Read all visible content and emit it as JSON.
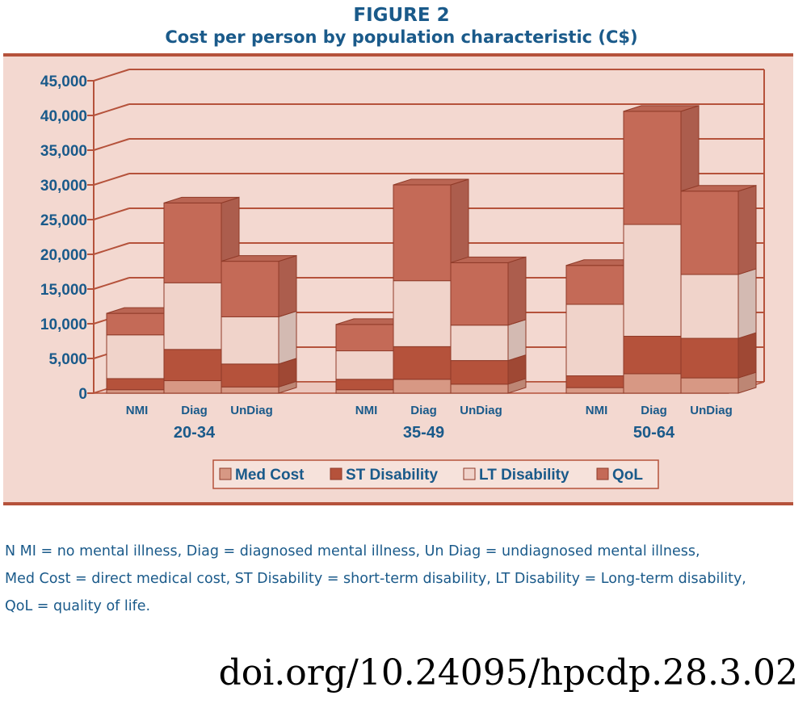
{
  "title": "FIGURE 2",
  "subtitle": "Cost per person by population characteristic (C$)",
  "chart_data": {
    "type": "bar",
    "stacked": true,
    "grid": true,
    "ylim": [
      0,
      45000
    ],
    "ytick_labels": [
      "0",
      "5,000",
      "10,000",
      "15,000",
      "20,000",
      "25,000",
      "30,000",
      "35,000",
      "40,000",
      "45,000"
    ],
    "groups": [
      "20-34",
      "35-49",
      "50-64"
    ],
    "categories": [
      "NMI",
      "Diag",
      "UnDiag"
    ],
    "series": [
      {
        "name": "Med Cost",
        "color": "#d79884",
        "values": [
          [
            500,
            1800,
            900
          ],
          [
            500,
            2000,
            1300
          ],
          [
            800,
            2800,
            2200
          ]
        ]
      },
      {
        "name": "ST Disability",
        "color": "#b5523b",
        "values": [
          [
            1600,
            4500,
            3300
          ],
          [
            1500,
            4700,
            3400
          ],
          [
            1700,
            5400,
            5700
          ]
        ]
      },
      {
        "name": "LT Disability",
        "color": "#f0d3ca",
        "values": [
          [
            6300,
            9600,
            6800
          ],
          [
            4100,
            9500,
            5100
          ],
          [
            10300,
            16100,
            9200
          ]
        ]
      },
      {
        "name": "QoL",
        "color": "#c46a57",
        "values": [
          [
            3100,
            11500,
            8000
          ],
          [
            3800,
            13800,
            9000
          ],
          [
            5600,
            16300,
            12000
          ]
        ]
      }
    ],
    "legend_position": "bottom"
  },
  "notes": [
    "N MI = no mental illness, Diag = diagnosed mental illness, Un Diag = undiagnosed mental illness,",
    "Med Cost = direct medical cost, ST Disability = short-term disability, LT Disability = Long-term disability,",
    "QoL = quality of life."
  ],
  "doi": "doi.org/10.24095/hpcdp.28.3.02"
}
